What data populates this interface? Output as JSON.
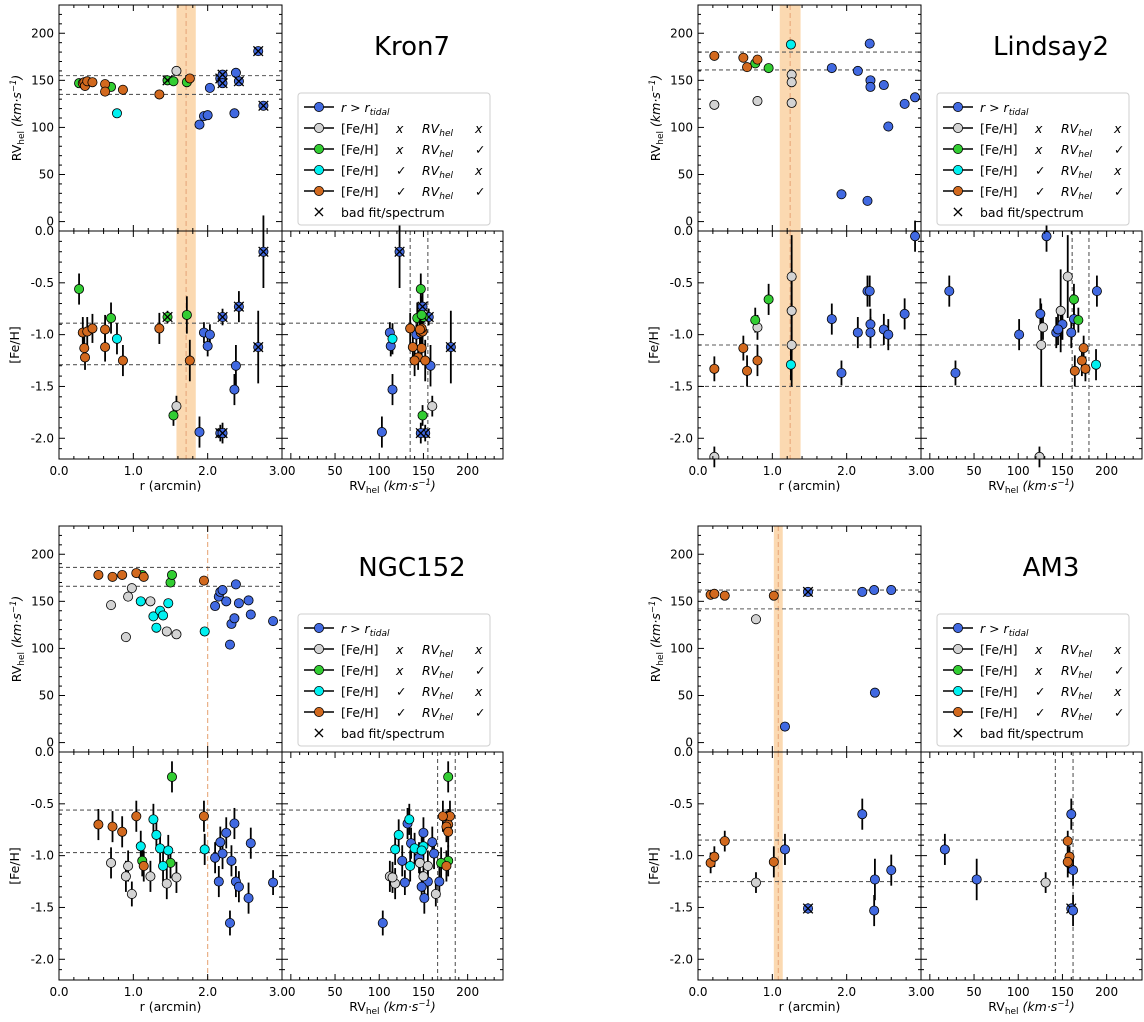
{
  "colors": {
    "tidal": "#4169e1",
    "none_ok": "#d3d3d3",
    "rv_ok": "#32cd32",
    "feh_ok": "#00f0f0",
    "both_ok": "#d2691e",
    "band": "#fbd9b1",
    "band_line": "#e8a87c",
    "dashed": "#5a5a5a"
  },
  "axis_labels": {
    "r": "r (arcmin)",
    "rv_prefix": "RV",
    "rv_sub": "hel",
    "rv_units": " (km·s",
    "rv_exp": "−1",
    "rv_close": ")",
    "feh": "[Fe/H]"
  },
  "legend": {
    "entries": [
      {
        "key": "tidal",
        "text_a": "r > r",
        "text_sub": "tidal"
      },
      {
        "key": "none_ok",
        "a": "[Fe/H]",
        "ma": "x",
        "b": "RV",
        "bs": "hel",
        "mb": "x"
      },
      {
        "key": "rv_ok",
        "a": "[Fe/H]",
        "ma": "x",
        "b": "RV",
        "bs": "hel",
        "mb": "✓"
      },
      {
        "key": "feh_ok",
        "a": "[Fe/H]",
        "ma": "✓",
        "b": "RV",
        "bs": "hel",
        "mb": "x"
      },
      {
        "key": "both_ok",
        "a": "[Fe/H]",
        "ma": "✓",
        "b": "RV",
        "bs": "hel",
        "mb": "✓"
      },
      {
        "key": "bad",
        "marker": "×",
        "text": "bad fit/spectrum"
      }
    ]
  },
  "ticks": {
    "r": [
      "0.0",
      "1.0",
      "2.0",
      "3.0"
    ],
    "rv_x": [
      "0",
      "50",
      "100",
      "150",
      "200"
    ],
    "rv_y": [
      "0",
      "50",
      "100",
      "150",
      "200"
    ],
    "feh": [
      "0.0",
      "-0.5",
      "-1.0",
      "-1.5",
      "-2.0"
    ]
  },
  "chart_data": [
    {
      "type": "scatter",
      "title": "Kron7",
      "rlim": [
        0,
        3
      ],
      "rvlim": [
        -10,
        230
      ],
      "fehlim": [
        -2.2,
        0
      ],
      "tidal_band": [
        1.58,
        1.84
      ],
      "tidal_r": 1.71,
      "rv_lines": [
        135,
        155
      ],
      "feh_lines": [
        -0.89,
        -1.29
      ],
      "points": [
        {
          "r": 0.27,
          "rv": 147,
          "feh": -0.56,
          "efeh": 0.15,
          "cls": "rv_ok"
        },
        {
          "r": 0.32,
          "rv": 147,
          "feh": -0.98,
          "efeh": 0.15,
          "cls": "both_ok"
        },
        {
          "r": 0.34,
          "rv": 148,
          "feh": -1.13,
          "efeh": 0.12,
          "cls": "both_ok"
        },
        {
          "r": 0.35,
          "rv": 144,
          "feh": -1.22,
          "efeh": 0.12,
          "cls": "both_ok"
        },
        {
          "r": 0.38,
          "rv": 149,
          "feh": -0.97,
          "efeh": 0.14,
          "cls": "both_ok"
        },
        {
          "r": 0.45,
          "rv": 148,
          "feh": -0.94,
          "efeh": 0.14,
          "cls": "both_ok"
        },
        {
          "r": 0.62,
          "rv": 146,
          "feh": -0.95,
          "efeh": 0.14,
          "cls": "both_ok"
        },
        {
          "r": 0.62,
          "rv": 138,
          "feh": -1.12,
          "efeh": 0.14,
          "cls": "both_ok"
        },
        {
          "r": 0.7,
          "rv": 143,
          "feh": -0.84,
          "efeh": 0.15,
          "cls": "rv_ok"
        },
        {
          "r": 0.78,
          "rv": 115,
          "feh": -1.04,
          "efeh": 0.15,
          "cls": "feh_ok"
        },
        {
          "r": 0.86,
          "rv": 140,
          "feh": -1.25,
          "efeh": 0.15,
          "cls": "both_ok"
        },
        {
          "r": 1.35,
          "rv": 135,
          "feh": -0.94,
          "efeh": 0.15,
          "cls": "both_ok"
        },
        {
          "r": 1.46,
          "rv": 150,
          "feh": -0.83,
          "efeh": 0.06,
          "cls": "rv_ok",
          "bad": true
        },
        {
          "r": 1.54,
          "rv": 149,
          "feh": -1.78,
          "efeh": 0.1,
          "cls": "rv_ok"
        },
        {
          "r": 1.58,
          "rv": 160,
          "feh": -1.69,
          "efeh": 0.1,
          "cls": "none_ok"
        },
        {
          "r": 1.72,
          "rv": 148,
          "feh": -0.81,
          "efeh": 0.18,
          "cls": "rv_ok"
        },
        {
          "r": 1.76,
          "rv": 152,
          "feh": -1.25,
          "efeh": 0.2,
          "cls": "both_ok"
        },
        {
          "r": 1.89,
          "rv": 103,
          "feh": -1.94,
          "efeh": 0.15,
          "cls": "tidal"
        },
        {
          "r": 1.95,
          "rv": 112,
          "feh": -0.98,
          "efeh": 0.1,
          "cls": "tidal"
        },
        {
          "r": 2.0,
          "rv": 113,
          "feh": -1.11,
          "efeh": 0.1,
          "cls": "tidal"
        },
        {
          "r": 2.03,
          "rv": 142,
          "feh": -1.0,
          "efeh": 0.1,
          "cls": "tidal"
        },
        {
          "r": 2.17,
          "rv": 152,
          "feh": -1.95,
          "efeh": 0.08,
          "cls": "tidal",
          "bad": true
        },
        {
          "r": 2.2,
          "rv": 156,
          "feh": -0.83,
          "efeh": 0.08,
          "cls": "tidal",
          "bad": true
        },
        {
          "r": 2.2,
          "rv": 147,
          "feh": -1.95,
          "efeh": 0.1,
          "cls": "tidal",
          "bad": true
        },
        {
          "r": 2.36,
          "rv": 115,
          "feh": -1.53,
          "efeh": 0.15,
          "cls": "tidal"
        },
        {
          "r": 2.38,
          "rv": 158,
          "feh": -1.3,
          "efeh": 0.2,
          "cls": "tidal"
        },
        {
          "r": 2.42,
          "rv": 149,
          "feh": -0.73,
          "efeh": 0.15,
          "cls": "tidal",
          "bad": true
        },
        {
          "r": 2.68,
          "rv": 181,
          "feh": -1.12,
          "efeh": 0.35,
          "cls": "tidal",
          "bad": true
        },
        {
          "r": 2.75,
          "rv": 123,
          "feh": -0.2,
          "efeh": 0.35,
          "cls": "tidal",
          "bad": true
        }
      ]
    },
    {
      "type": "scatter",
      "title": "Lindsay2",
      "rlim": [
        0,
        3
      ],
      "rvlim": [
        -10,
        230
      ],
      "fehlim": [
        -2.2,
        0
      ],
      "tidal_band": [
        1.1,
        1.38
      ],
      "tidal_r": 1.24,
      "rv_lines": [
        161,
        180
      ],
      "feh_lines": [
        -1.1,
        -1.5
      ],
      "points": [
        {
          "r": 0.22,
          "rv": 176,
          "feh": -1.33,
          "efeh": 0.12,
          "cls": "both_ok"
        },
        {
          "r": 0.22,
          "rv": 124,
          "feh": -2.18,
          "efeh": 0.1,
          "cls": "none_ok"
        },
        {
          "r": 0.61,
          "rv": 174,
          "feh": -1.13,
          "efeh": 0.12,
          "cls": "both_ok"
        },
        {
          "r": 0.66,
          "rv": 164,
          "feh": -1.35,
          "efeh": 0.15,
          "cls": "both_ok"
        },
        {
          "r": 0.77,
          "rv": 168,
          "feh": -0.86,
          "efeh": 0.12,
          "cls": "rv_ok"
        },
        {
          "r": 0.8,
          "rv": 128,
          "feh": -0.93,
          "efeh": 0.12,
          "cls": "none_ok"
        },
        {
          "r": 0.8,
          "rv": 172,
          "feh": -1.25,
          "efeh": 0.15,
          "cls": "both_ok"
        },
        {
          "r": 0.95,
          "rv": 163,
          "feh": -0.66,
          "efeh": 0.15,
          "cls": "rv_ok"
        },
        {
          "r": 1.25,
          "rv": 188,
          "feh": -1.29,
          "efeh": 0.15,
          "cls": "feh_ok"
        },
        {
          "r": 1.26,
          "rv": 156,
          "feh": -0.44,
          "efeh": 0.4,
          "cls": "none_ok"
        },
        {
          "r": 1.26,
          "rv": 148,
          "feh": -0.77,
          "efeh": 0.4,
          "cls": "none_ok"
        },
        {
          "r": 1.26,
          "rv": 126,
          "feh": -1.1,
          "efeh": 0.4,
          "cls": "none_ok"
        },
        {
          "r": 1.8,
          "rv": 163,
          "feh": -0.85,
          "efeh": 0.15,
          "cls": "tidal"
        },
        {
          "r": 1.93,
          "rv": 29,
          "feh": -1.37,
          "efeh": 0.12,
          "cls": "tidal"
        },
        {
          "r": 2.15,
          "rv": 160,
          "feh": -0.98,
          "efeh": 0.15,
          "cls": "tidal"
        },
        {
          "r": 2.28,
          "rv": 22,
          "feh": -0.58,
          "efeh": 0.15,
          "cls": "tidal"
        },
        {
          "r": 2.31,
          "rv": 189,
          "feh": -0.58,
          "efeh": 0.15,
          "cls": "tidal"
        },
        {
          "r": 2.32,
          "rv": 150,
          "feh": -0.9,
          "efeh": 0.15,
          "cls": "tidal"
        },
        {
          "r": 2.32,
          "rv": 143,
          "feh": -0.98,
          "efeh": 0.15,
          "cls": "tidal"
        },
        {
          "r": 2.5,
          "rv": 145,
          "feh": -0.95,
          "efeh": 0.15,
          "cls": "tidal"
        },
        {
          "r": 2.56,
          "rv": 101,
          "feh": -1.0,
          "efeh": 0.15,
          "cls": "tidal"
        },
        {
          "r": 2.78,
          "rv": 125,
          "feh": -0.8,
          "efeh": 0.15,
          "cls": "tidal"
        },
        {
          "r": 2.92,
          "rv": 132,
          "feh": -0.05,
          "efeh": 0.15,
          "cls": "tidal"
        }
      ]
    },
    {
      "type": "scatter",
      "title": "NGC152",
      "rlim": [
        0,
        3
      ],
      "rvlim": [
        -10,
        230
      ],
      "fehlim": [
        -2.2,
        0
      ],
      "tidal_band": null,
      "tidal_r": 2.0,
      "rv_lines": [
        166,
        186
      ],
      "feh_lines": [
        -0.56,
        -0.97
      ],
      "points": [
        {
          "r": 0.53,
          "rv": 178,
          "feh": -0.7,
          "efeh": 0.15,
          "cls": "both_ok"
        },
        {
          "r": 0.7,
          "rv": 146,
          "feh": -1.07,
          "efeh": 0.15,
          "cls": "none_ok"
        },
        {
          "r": 0.72,
          "rv": 176,
          "feh": -0.72,
          "efeh": 0.15,
          "cls": "both_ok"
        },
        {
          "r": 0.85,
          "rv": 178,
          "feh": -0.77,
          "efeh": 0.15,
          "cls": "both_ok"
        },
        {
          "r": 0.9,
          "rv": 112,
          "feh": -1.2,
          "efeh": 0.15,
          "cls": "none_ok"
        },
        {
          "r": 0.93,
          "rv": 155,
          "feh": -1.1,
          "efeh": 0.15,
          "cls": "none_ok"
        },
        {
          "r": 0.98,
          "rv": 164,
          "feh": -1.37,
          "efeh": 0.12,
          "cls": "none_ok"
        },
        {
          "r": 1.04,
          "rv": 180,
          "feh": -0.62,
          "efeh": 0.15,
          "cls": "both_ok"
        },
        {
          "r": 1.1,
          "rv": 150,
          "feh": -0.91,
          "efeh": 0.15,
          "cls": "feh_ok"
        },
        {
          "r": 1.12,
          "rv": 178,
          "feh": -1.05,
          "efeh": 0.15,
          "cls": "rv_ok"
        },
        {
          "r": 1.14,
          "rv": 176,
          "feh": -1.1,
          "efeh": 0.15,
          "cls": "both_ok"
        },
        {
          "r": 1.23,
          "rv": 150,
          "feh": -1.2,
          "efeh": 0.15,
          "cls": "none_ok"
        },
        {
          "r": 1.27,
          "rv": 134,
          "feh": -0.65,
          "efeh": 0.15,
          "cls": "feh_ok"
        },
        {
          "r": 1.31,
          "rv": 122,
          "feh": -0.8,
          "efeh": 0.15,
          "cls": "feh_ok"
        },
        {
          "r": 1.36,
          "rv": 140,
          "feh": -0.93,
          "efeh": 0.15,
          "cls": "feh_ok"
        },
        {
          "r": 1.4,
          "rv": 135,
          "feh": -1.1,
          "efeh": 0.15,
          "cls": "feh_ok"
        },
        {
          "r": 1.45,
          "rv": 118,
          "feh": -1.27,
          "efeh": 0.15,
          "cls": "none_ok"
        },
        {
          "r": 1.47,
          "rv": 148,
          "feh": -0.95,
          "efeh": 0.15,
          "cls": "feh_ok"
        },
        {
          "r": 1.5,
          "rv": 170,
          "feh": -1.07,
          "efeh": 0.15,
          "cls": "rv_ok"
        },
        {
          "r": 1.52,
          "rv": 178,
          "feh": -0.24,
          "efeh": 0.15,
          "cls": "rv_ok"
        },
        {
          "r": 1.58,
          "rv": 115,
          "feh": -1.21,
          "efeh": 0.15,
          "cls": "none_ok"
        },
        {
          "r": 1.95,
          "rv": 172,
          "feh": -0.62,
          "efeh": 0.15,
          "cls": "both_ok"
        },
        {
          "r": 1.96,
          "rv": 118,
          "feh": -0.94,
          "efeh": 0.15,
          "cls": "feh_ok"
        },
        {
          "r": 2.1,
          "rv": 145,
          "feh": -1.02,
          "efeh": 0.15,
          "cls": "tidal"
        },
        {
          "r": 2.15,
          "rv": 155,
          "feh": -1.25,
          "efeh": 0.15,
          "cls": "tidal"
        },
        {
          "r": 2.17,
          "rv": 160,
          "feh": -0.87,
          "efeh": 0.15,
          "cls": "tidal"
        },
        {
          "r": 2.2,
          "rv": 162,
          "feh": -0.98,
          "efeh": 0.15,
          "cls": "tidal"
        },
        {
          "r": 2.25,
          "rv": 150,
          "feh": -0.78,
          "efeh": 0.15,
          "cls": "tidal"
        },
        {
          "r": 2.3,
          "rv": 104,
          "feh": -1.65,
          "efeh": 0.12,
          "cls": "tidal"
        },
        {
          "r": 2.32,
          "rv": 126,
          "feh": -1.05,
          "efeh": 0.15,
          "cls": "tidal"
        },
        {
          "r": 2.36,
          "rv": 132,
          "feh": -0.69,
          "efeh": 0.15,
          "cls": "tidal"
        },
        {
          "r": 2.38,
          "rv": 168,
          "feh": -1.25,
          "efeh": 0.15,
          "cls": "tidal"
        },
        {
          "r": 2.42,
          "rv": 148,
          "feh": -1.3,
          "efeh": 0.15,
          "cls": "tidal"
        },
        {
          "r": 2.55,
          "rv": 151,
          "feh": -1.41,
          "efeh": 0.15,
          "cls": "tidal"
        },
        {
          "r": 2.58,
          "rv": 136,
          "feh": -0.88,
          "efeh": 0.15,
          "cls": "tidal"
        },
        {
          "r": 2.88,
          "rv": 129,
          "feh": -1.26,
          "efeh": 0.12,
          "cls": "tidal"
        }
      ]
    },
    {
      "type": "scatter",
      "title": "AM3",
      "rlim": [
        0,
        3
      ],
      "rvlim": [
        -10,
        230
      ],
      "fehlim": [
        -2.2,
        0
      ],
      "tidal_band": [
        1.02,
        1.14
      ],
      "tidal_r": 1.08,
      "rv_lines": [
        142,
        162
      ],
      "feh_lines": [
        -0.85,
        -1.25
      ],
      "points": [
        {
          "r": 0.17,
          "rv": 157,
          "feh": -1.07,
          "efeh": 0.1,
          "cls": "both_ok"
        },
        {
          "r": 0.22,
          "rv": 158,
          "feh": -1.01,
          "efeh": 0.1,
          "cls": "both_ok"
        },
        {
          "r": 0.36,
          "rv": 156,
          "feh": -0.86,
          "efeh": 0.1,
          "cls": "both_ok"
        },
        {
          "r": 0.78,
          "rv": 131,
          "feh": -1.26,
          "efeh": 0.1,
          "cls": "none_ok"
        },
        {
          "r": 1.02,
          "rv": 156,
          "feh": -1.06,
          "efeh": 0.15,
          "cls": "both_ok"
        },
        {
          "r": 1.17,
          "rv": 17,
          "feh": -0.94,
          "efeh": 0.15,
          "cls": "tidal"
        },
        {
          "r": 1.48,
          "rv": 160,
          "feh": -1.51,
          "efeh": 0.05,
          "cls": "tidal",
          "bad": true
        },
        {
          "r": 2.21,
          "rv": 160,
          "feh": -0.6,
          "efeh": 0.15,
          "cls": "tidal"
        },
        {
          "r": 2.37,
          "rv": 162,
          "feh": -1.53,
          "efeh": 0.15,
          "cls": "tidal"
        },
        {
          "r": 2.38,
          "rv": 53,
          "feh": -1.23,
          "efeh": 0.2,
          "cls": "tidal"
        },
        {
          "r": 2.6,
          "rv": 162,
          "feh": -1.14,
          "efeh": 0.15,
          "cls": "tidal"
        }
      ]
    }
  ]
}
